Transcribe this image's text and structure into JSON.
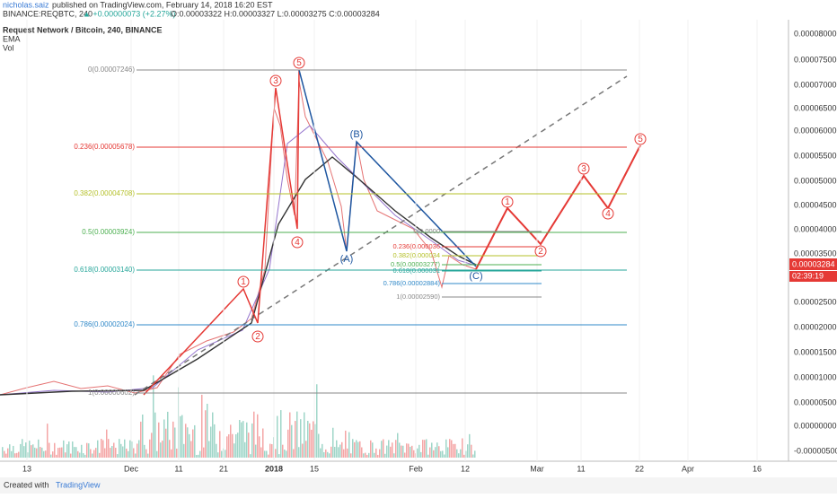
{
  "header": {
    "publisher": "nicholas.saiz",
    "published": "published on TradingView.com, February 14, 2018 16:20 EST",
    "symbol": "BINANCE:REQBTC, 240",
    "change": "▲ +0.00000073 (+2.27%)",
    "ohlc": "O:0.00003322 H:0.00003327 L:0.00003275 C:0.00003284"
  },
  "legend": [
    "Request Network / Bitcoin, 240, BINANCE",
    "EMA",
    "Vol"
  ],
  "price_axis": [
    "0.00008000",
    "0.00007500",
    "0.00007000",
    "0.00006500",
    "0.00006000",
    "0.00005500",
    "0.00005000",
    "0.00004500",
    "0.00004000",
    "0.00003500",
    "0.00002500",
    "0.00002000",
    "0.00001500",
    "0.00001000",
    "0.00000500",
    "0.00000000",
    "-0.00000500"
  ],
  "price_tag": {
    "price": "0.00003284",
    "countdown": "02:39:19"
  },
  "time_axis": [
    "13",
    "Dec",
    "11",
    "21",
    "2018",
    "15",
    "Feb",
    "12",
    "Mar",
    "11",
    "22",
    "Apr",
    "16"
  ],
  "fib_main": [
    "0(0.00007246)",
    "0.236(0.00005678)",
    "0.382(0.00004708)",
    "0.5(0.00003924)",
    "0.618(0.00003140)",
    "0.786(0.00002024)",
    "1(0.00000602)"
  ],
  "fib_small": [
    "0(0.0000",
    "0.236(0.000036",
    "0.382(0.000034",
    "0.5(0.00003277)",
    "0.618(0.000031",
    "0.786(0.00002884)",
    "1(0.00002590)"
  ],
  "waves_red": [
    "1",
    "2",
    "3",
    "4",
    "5",
    "1",
    "2",
    "3",
    "4",
    "5"
  ],
  "waves_blue": [
    "(A)",
    "(B)",
    "(C)"
  ],
  "footer": {
    "created": "Created with",
    "brand": "TradingView"
  }
}
